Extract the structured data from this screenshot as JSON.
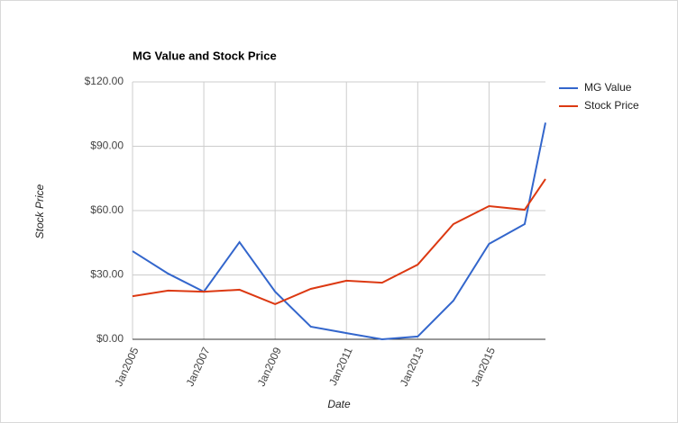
{
  "chart_data": {
    "type": "line",
    "title": "MG Value and Stock Price",
    "x_label": "Date",
    "y_label": "Stock Price",
    "x": [
      "2005-01",
      "2006-01",
      "2007-01",
      "2008-01",
      "2009-01",
      "2010-01",
      "2011-01",
      "2012-01",
      "2013-01",
      "2014-01",
      "2015-01",
      "2016-01",
      "2016-08"
    ],
    "series": [
      {
        "name": "MG Value",
        "color": "#3366cc",
        "values": [
          41.1,
          30.6,
          22.2,
          45.3,
          22.2,
          5.9,
          2.9,
          0,
          1.3,
          18,
          44.5,
          53.7,
          101
        ]
      },
      {
        "name": "Stock Price",
        "color": "#dc3912",
        "values": [
          20.1,
          22.7,
          22.2,
          23.1,
          16.4,
          23.5,
          27.3,
          26.4,
          34.8,
          53.7,
          62.1,
          60.4,
          74.7
        ]
      }
    ],
    "xlim": [
      "2005-01",
      "2016-08"
    ],
    "xticks": [
      {
        "value": "2005-01",
        "label": "Jan2005"
      },
      {
        "value": "2007-01",
        "label": "Jan2007"
      },
      {
        "value": "2009-01",
        "label": "Jan2009"
      },
      {
        "value": "2011-01",
        "label": "Jan2011"
      },
      {
        "value": "2013-01",
        "label": "Jan2013"
      },
      {
        "value": "2015-01",
        "label": "Jan2015"
      }
    ],
    "ylim": [
      0,
      120
    ],
    "yticks": [
      {
        "value": 0,
        "label": "$0.00"
      },
      {
        "value": 30,
        "label": "$30.00"
      },
      {
        "value": 60,
        "label": "$60.00"
      },
      {
        "value": 90,
        "label": "$90.00"
      },
      {
        "value": 120,
        "label": "$120.00"
      }
    ],
    "grid": true,
    "legend": "right"
  }
}
